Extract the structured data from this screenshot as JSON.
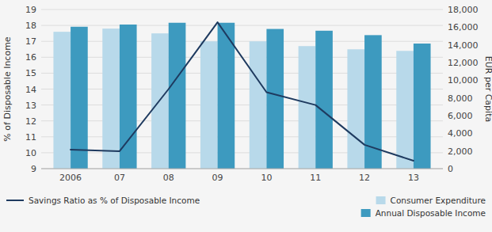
{
  "chart_data": {
    "type": "bar",
    "categories": [
      "2006",
      "07",
      "08",
      "09",
      "10",
      "11",
      "12",
      "13"
    ],
    "series": [
      {
        "name": "Consumer Expenditure",
        "color": "#b8d9ea",
        "values": [
          17.6,
          17.8,
          17.5,
          17.0,
          17.0,
          16.7,
          16.5,
          16.4
        ]
      },
      {
        "name": "Annual Disposable Income",
        "color": "#3d9abf",
        "axis": "y2",
        "values": [
          16050,
          16300,
          16500,
          16500,
          15800,
          15600,
          15100,
          14150
        ]
      },
      {
        "name": "Savings Ratio as % of Disposable Income",
        "type": "line",
        "color": "#1e3a5f",
        "values": [
          10.2,
          10.1,
          14.0,
          18.2,
          13.8,
          13.0,
          10.5,
          9.5
        ]
      }
    ],
    "ylabel": "% of Disposable Income",
    "y2label": "EUR per Capita",
    "ylim": [
      9,
      19
    ],
    "yticks": [
      9,
      10,
      11,
      12,
      13,
      14,
      15,
      16,
      17,
      18,
      19
    ],
    "y2lim": [
      0,
      18000
    ],
    "y2ticks": [
      0,
      {
        "value": 2000,
        "label": "2,000"
      },
      {
        "value": 4000,
        "label": "4,000"
      },
      {
        "value": 6000,
        "label": "6,000"
      },
      {
        "value": 8000,
        "label": "8,000"
      },
      {
        "value": 10000,
        "label": "10,000"
      },
      {
        "value": 12000,
        "label": "12,000"
      },
      {
        "value": 14000,
        "label": "14,000"
      },
      {
        "value": 16000,
        "label": "16,000"
      },
      {
        "value": 18000,
        "label": "18,000"
      }
    ],
    "grid": true,
    "legend": "bottom"
  }
}
